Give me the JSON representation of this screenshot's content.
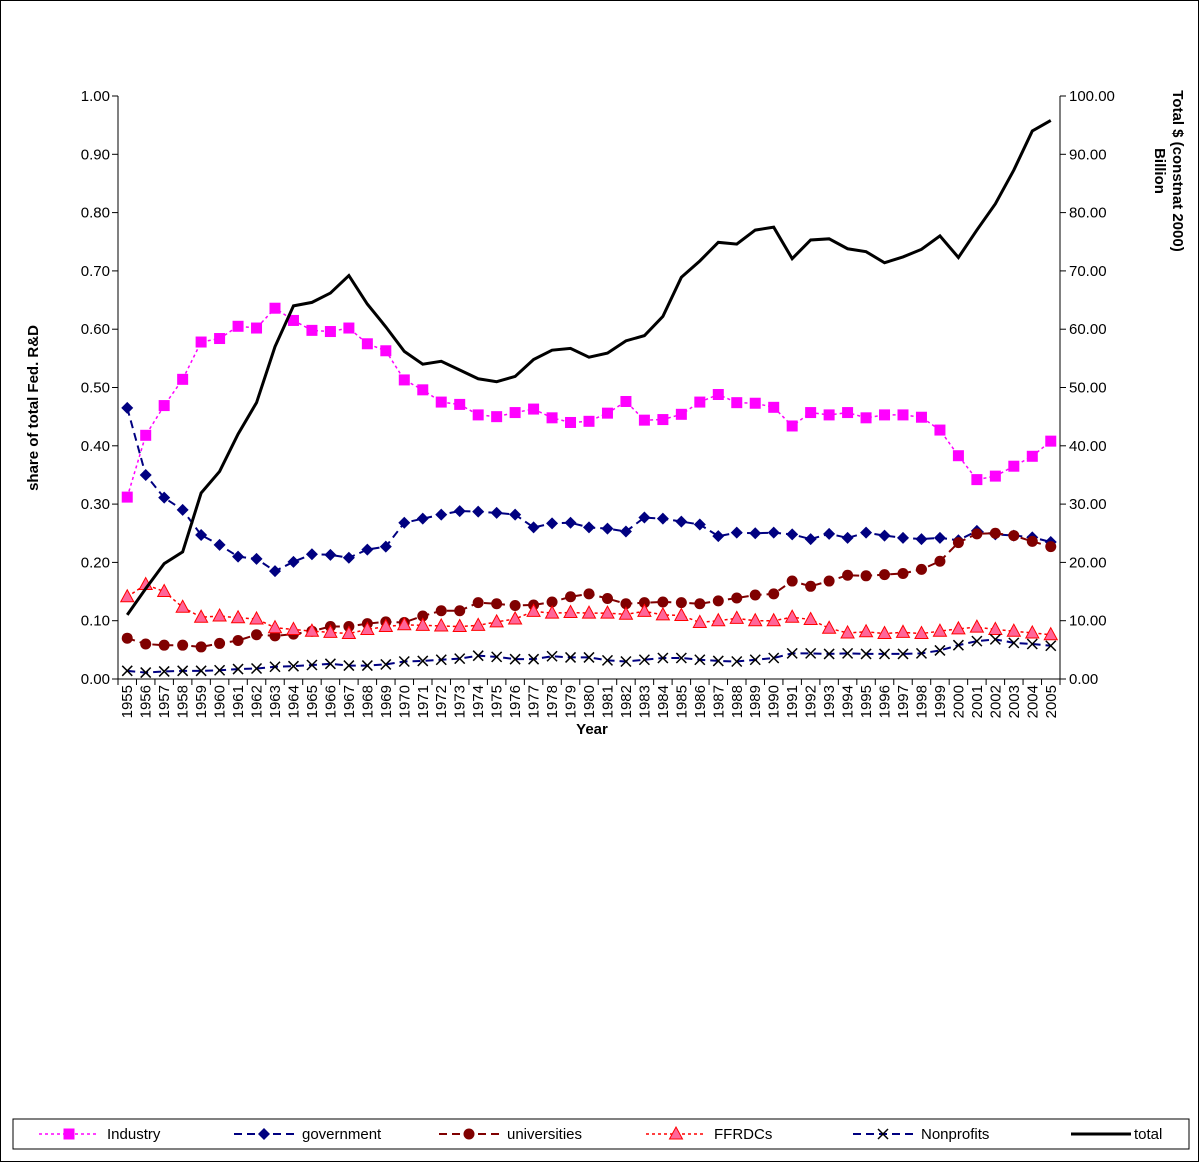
{
  "chart_data": {
    "type": "line",
    "title": "",
    "xlabel": "Year",
    "ylabel": "share of total Fed. R&D",
    "y2label": "Total $ (constnat 2000) Billion",
    "ylim": [
      0,
      1
    ],
    "y2lim": [
      0,
      100
    ],
    "y_ticks": [
      "0.00",
      "0.10",
      "0.20",
      "0.30",
      "0.40",
      "0.50",
      "0.60",
      "0.70",
      "0.80",
      "0.90",
      "1.00"
    ],
    "y2_ticks": [
      "0.00",
      "10.00",
      "20.00",
      "30.00",
      "40.00",
      "50.00",
      "60.00",
      "70.00",
      "80.00",
      "90.00",
      "100.00"
    ],
    "grid": false,
    "legend_position": "bottom",
    "x": [
      1955,
      1956,
      1957,
      1958,
      1959,
      1960,
      1961,
      1962,
      1963,
      1964,
      1965,
      1966,
      1967,
      1968,
      1969,
      1970,
      1971,
      1972,
      1973,
      1974,
      1975,
      1976,
      1977,
      1978,
      1979,
      1980,
      1981,
      1982,
      1983,
      1984,
      1985,
      1986,
      1987,
      1988,
      1989,
      1990,
      1991,
      1992,
      1993,
      1994,
      1995,
      1996,
      1997,
      1998,
      1999,
      2000,
      2001,
      2002,
      2003,
      2004,
      2005
    ],
    "x_tick_labels": [
      "1955",
      "1956",
      "1957",
      "1958",
      "1959",
      "1960",
      "1961",
      "1962",
      "1963",
      "1964",
      "1965",
      "1966",
      "1967",
      "1968",
      "1969",
      "1970",
      "1971",
      "1972",
      "1973",
      "1974",
      "1975",
      "1976",
      "1977",
      "1978",
      "1979",
      "1980",
      "1981",
      "1982",
      "1983",
      "1984",
      "1985",
      "1986",
      "1987",
      "1988",
      "1989",
      "1990",
      "1991",
      "1992",
      "1993",
      "1994",
      "1995",
      "1996",
      "1997",
      "1998",
      "1999",
      "2000",
      "2001",
      "2002",
      "2003",
      "2004",
      "2005"
    ],
    "series": [
      {
        "name": "Industry",
        "axis": "left",
        "color": "#ff00ff",
        "marker": "square",
        "line": "dotted",
        "values": [
          0.312,
          0.418,
          0.469,
          0.514,
          0.578,
          0.584,
          0.605,
          0.602,
          0.636,
          0.615,
          0.598,
          0.596,
          0.602,
          0.575,
          0.563,
          0.513,
          0.496,
          0.475,
          0.471,
          0.453,
          0.45,
          0.457,
          0.463,
          0.448,
          0.44,
          0.442,
          0.456,
          0.476,
          0.444,
          0.445,
          0.454,
          0.475,
          0.488,
          0.474,
          0.473,
          0.466,
          0.434,
          0.457,
          0.453,
          0.457,
          0.448,
          0.453,
          0.453,
          0.449,
          0.427,
          0.383,
          0.342,
          0.348,
          0.365,
          0.382,
          0.408
        ]
      },
      {
        "name": "government",
        "axis": "left",
        "color": "#000080",
        "marker": "diamond",
        "line": "dashed",
        "values": [
          0.465,
          0.35,
          0.311,
          0.29,
          0.247,
          0.23,
          0.21,
          0.206,
          0.185,
          0.201,
          0.214,
          0.213,
          0.208,
          0.222,
          0.227,
          0.268,
          0.275,
          0.282,
          0.288,
          0.287,
          0.285,
          0.282,
          0.26,
          0.267,
          0.268,
          0.26,
          0.258,
          0.253,
          0.277,
          0.275,
          0.27,
          0.265,
          0.245,
          0.251,
          0.25,
          0.251,
          0.248,
          0.24,
          0.249,
          0.242,
          0.251,
          0.246,
          0.242,
          0.24,
          0.242,
          0.238,
          0.254,
          0.248,
          0.246,
          0.243,
          0.235
        ]
      },
      {
        "name": "universities",
        "axis": "left",
        "color": "#800000",
        "marker": "circle",
        "line": "dashed",
        "values": [
          0.07,
          0.06,
          0.058,
          0.058,
          0.055,
          0.061,
          0.066,
          0.076,
          0.074,
          0.077,
          0.082,
          0.09,
          0.09,
          0.095,
          0.098,
          0.097,
          0.108,
          0.117,
          0.117,
          0.131,
          0.129,
          0.126,
          0.127,
          0.132,
          0.141,
          0.146,
          0.138,
          0.129,
          0.131,
          0.132,
          0.131,
          0.129,
          0.134,
          0.139,
          0.144,
          0.146,
          0.168,
          0.159,
          0.168,
          0.178,
          0.177,
          0.179,
          0.181,
          0.188,
          0.202,
          0.234,
          0.249,
          0.25,
          0.246,
          0.236,
          0.227
        ]
      },
      {
        "name": "FFRDCs",
        "axis": "left",
        "color": "#ff0000",
        "fill": "#ff6699",
        "marker": "triangle",
        "line": "dotted",
        "values": [
          0.141,
          0.162,
          0.15,
          0.123,
          0.106,
          0.108,
          0.105,
          0.103,
          0.088,
          0.085,
          0.082,
          0.08,
          0.078,
          0.085,
          0.09,
          0.093,
          0.092,
          0.091,
          0.09,
          0.092,
          0.098,
          0.103,
          0.116,
          0.113,
          0.114,
          0.113,
          0.113,
          0.111,
          0.116,
          0.11,
          0.109,
          0.097,
          0.1,
          0.104,
          0.1,
          0.1,
          0.106,
          0.102,
          0.087,
          0.079,
          0.081,
          0.078,
          0.08,
          0.078,
          0.082,
          0.086,
          0.089,
          0.085,
          0.082,
          0.079,
          0.076
        ]
      },
      {
        "name": "Nonprofits",
        "axis": "left",
        "color": "#000080",
        "marker": "x",
        "marker_color": "#000000",
        "line": "dashed",
        "values": [
          0.014,
          0.011,
          0.013,
          0.014,
          0.014,
          0.015,
          0.017,
          0.018,
          0.021,
          0.022,
          0.024,
          0.026,
          0.023,
          0.023,
          0.025,
          0.03,
          0.031,
          0.033,
          0.035,
          0.04,
          0.038,
          0.034,
          0.034,
          0.039,
          0.037,
          0.037,
          0.032,
          0.03,
          0.033,
          0.036,
          0.036,
          0.033,
          0.031,
          0.03,
          0.033,
          0.036,
          0.044,
          0.044,
          0.043,
          0.044,
          0.043,
          0.043,
          0.043,
          0.044,
          0.049,
          0.058,
          0.065,
          0.068,
          0.062,
          0.06,
          0.057
        ]
      },
      {
        "name": "total",
        "axis": "right",
        "color": "#000000",
        "marker": "none",
        "line": "solid",
        "values": [
          11.0,
          15.5,
          19.8,
          21.8,
          31.9,
          35.6,
          42.0,
          47.4,
          57.0,
          64.0,
          64.6,
          66.2,
          69.2,
          64.3,
          60.4,
          56.2,
          54.0,
          54.5,
          53.0,
          51.5,
          51.0,
          51.9,
          54.8,
          56.4,
          56.7,
          55.2,
          55.9,
          58.0,
          58.9,
          62.2,
          68.9,
          71.7,
          74.9,
          74.6,
          77.0,
          77.5,
          72.1,
          75.3,
          75.5,
          73.8,
          73.3,
          71.4,
          72.4,
          73.7,
          76.0,
          72.3,
          77.0,
          81.5,
          87.3,
          94.0,
          95.8
        ]
      }
    ]
  }
}
